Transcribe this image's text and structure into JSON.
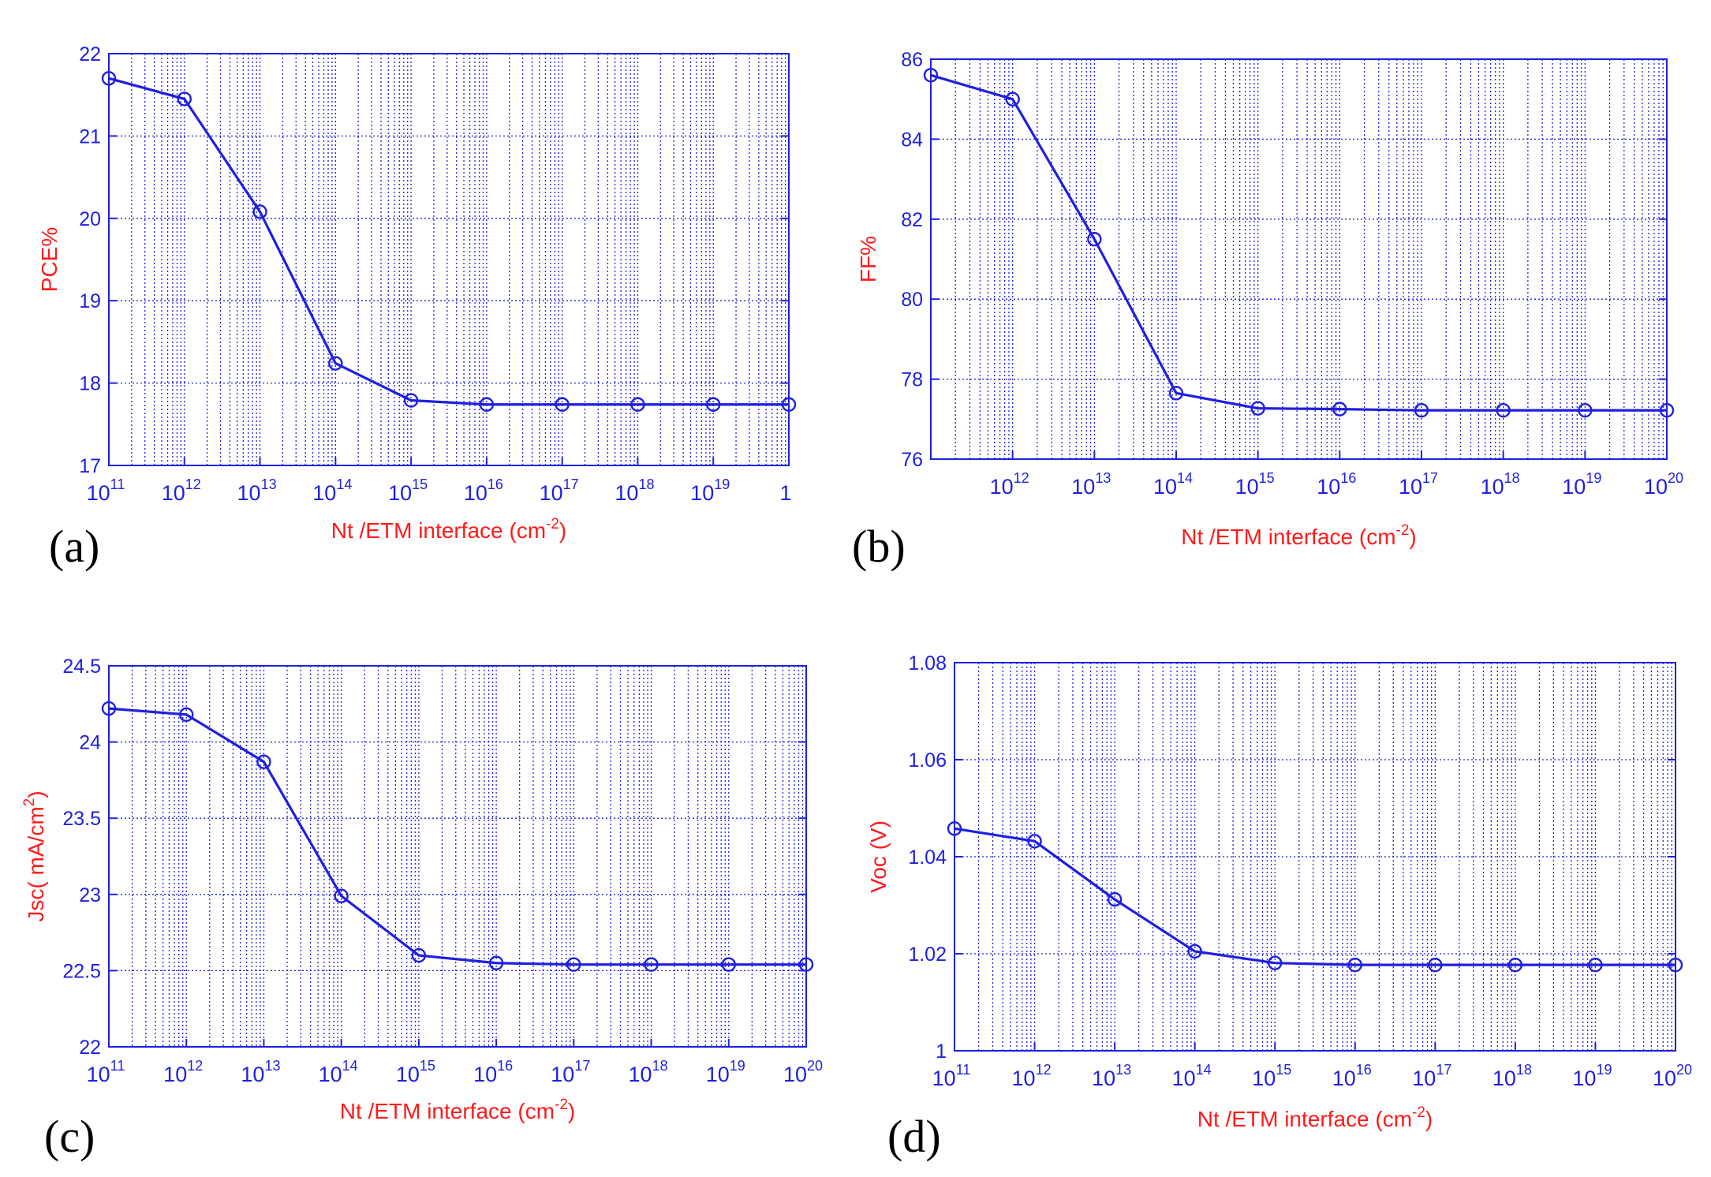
{
  "chart_data": [
    {
      "type": "line",
      "panel_label": "(a)",
      "xscale": "log",
      "xlabel": "Nt /ETM interface (cm",
      "xlabel_exp": "-2",
      "xlabel_end": ")",
      "ylabel": "PCE%",
      "ylim": [
        17,
        22
      ],
      "yticks": [
        "17",
        "18",
        "19",
        "20",
        "21",
        "22"
      ],
      "xlim_exp": [
        11,
        20
      ],
      "xtick_exps": [
        "11",
        "12",
        "13",
        "14",
        "15",
        "16",
        "17",
        "18",
        "19",
        ""
      ],
      "xtick_bases": [
        "10",
        "10",
        "10",
        "10",
        "10",
        "10",
        "10",
        "10",
        "10",
        "1"
      ],
      "grid": true,
      "marker": "circle",
      "color": "#1f1fe0",
      "x_exp": [
        11,
        12,
        13,
        14,
        15,
        16,
        17,
        18,
        19,
        20
      ],
      "y": [
        21.7,
        21.45,
        20.08,
        18.24,
        17.79,
        17.74,
        17.74,
        17.74,
        17.74,
        17.74
      ]
    },
    {
      "type": "line",
      "panel_label": "(b)",
      "xscale": "log",
      "xlabel": "Nt /ETM interface (cm",
      "xlabel_exp": "-2",
      "xlabel_end": ")",
      "ylabel": "FF%",
      "ylim": [
        76,
        86
      ],
      "yticks": [
        "76",
        "78",
        "80",
        "82",
        "84",
        "86"
      ],
      "xlim_exp": [
        11,
        20
      ],
      "xtick_exps": [
        "",
        "12",
        "13",
        "14",
        "15",
        "16",
        "17",
        "18",
        "19",
        "20"
      ],
      "xtick_bases": [
        "",
        "10",
        "10",
        "10",
        "10",
        "10",
        "10",
        "10",
        "10",
        "10"
      ],
      "grid": true,
      "marker": "circle",
      "color": "#1f1fe0",
      "x_exp": [
        11,
        12,
        13,
        14,
        15,
        16,
        17,
        18,
        19,
        20
      ],
      "y": [
        85.6,
        85.0,
        81.5,
        77.65,
        77.27,
        77.25,
        77.22,
        77.22,
        77.22,
        77.22
      ]
    },
    {
      "type": "line",
      "panel_label": "(c)",
      "xscale": "log",
      "xlabel": "Nt /ETM interface (cm",
      "xlabel_exp": "-2",
      "xlabel_end": ")",
      "ylabel": "Jsc( mA/cm",
      "ylabel_exp": "2",
      "ylabel_end": ")",
      "ylim": [
        22,
        24.5
      ],
      "yticks": [
        "22",
        "22.5",
        "23",
        "23.5",
        "24",
        "24.5"
      ],
      "xlim_exp": [
        11,
        20
      ],
      "xtick_exps": [
        "11",
        "12",
        "13",
        "14",
        "15",
        "16",
        "17",
        "18",
        "19",
        "20"
      ],
      "xtick_bases": [
        "10",
        "10",
        "10",
        "10",
        "10",
        "10",
        "10",
        "10",
        "10",
        "10"
      ],
      "grid": true,
      "marker": "circle",
      "color": "#1f1fe0",
      "x_exp": [
        11,
        12,
        13,
        14,
        15,
        16,
        17,
        18,
        19,
        20
      ],
      "y": [
        24.22,
        24.18,
        23.87,
        22.99,
        22.6,
        22.55,
        22.54,
        22.54,
        22.54,
        22.54
      ]
    },
    {
      "type": "line",
      "panel_label": "(d)",
      "xscale": "log",
      "xlabel": "Nt /ETM interface (cm",
      "xlabel_exp": "-2",
      "xlabel_end": ")",
      "ylabel": "Voc (V)",
      "ylim": [
        1,
        1.08
      ],
      "yticks": [
        "1",
        "1.02",
        "1.04",
        "1.06",
        "1.08"
      ],
      "xlim_exp": [
        11,
        20
      ],
      "xtick_exps": [
        "11",
        "12",
        "13",
        "14",
        "15",
        "16",
        "17",
        "18",
        "19",
        "20"
      ],
      "xtick_bases": [
        "10",
        "10",
        "10",
        "10",
        "10",
        "10",
        "10",
        "10",
        "10",
        "10"
      ],
      "grid": true,
      "marker": "circle",
      "color": "#1f1fe0",
      "x_exp": [
        11,
        12,
        13,
        14,
        15,
        16,
        17,
        18,
        19,
        20
      ],
      "y": [
        1.0458,
        1.0432,
        1.0312,
        1.0205,
        1.0181,
        1.0177,
        1.0177,
        1.0177,
        1.0177,
        1.0177
      ]
    }
  ]
}
